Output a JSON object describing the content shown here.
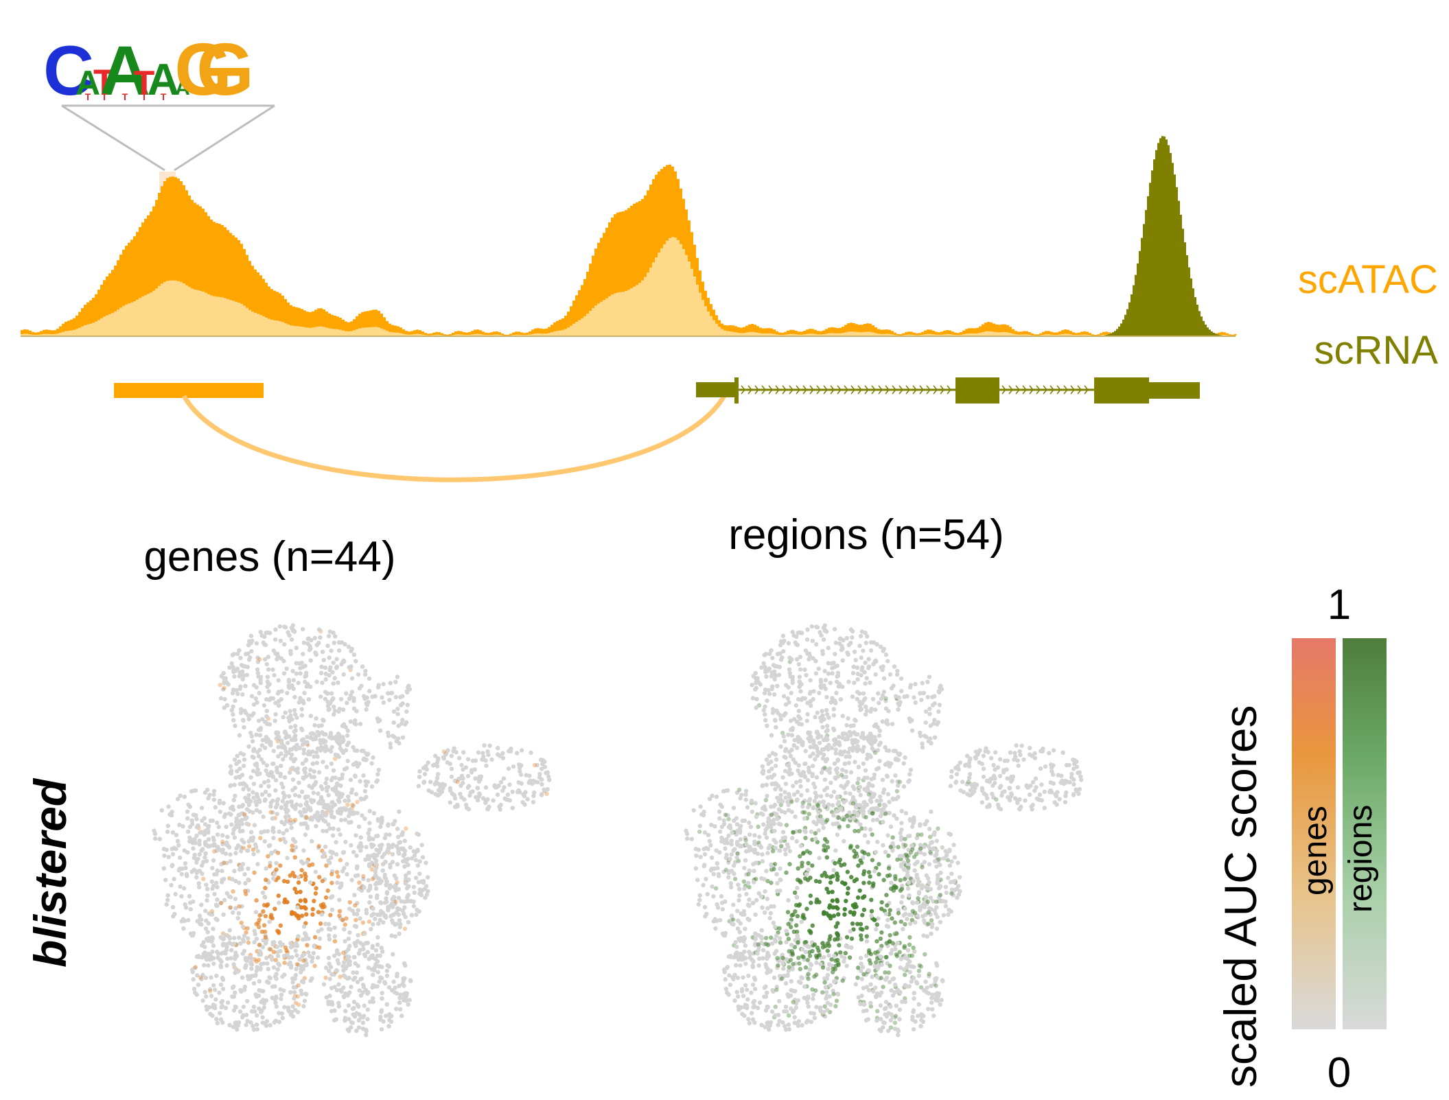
{
  "motif": {
    "letters": [
      "C",
      "A",
      "T",
      "A",
      "T",
      "A",
      "A",
      "G",
      "G"
    ],
    "colors": {
      "A": "#17891c",
      "C": "#1d2fd6",
      "G": "#f2a414",
      "T": "#e8292a"
    }
  },
  "tracks": {
    "atac_label": "scATAC",
    "rna_label": "scRNA",
    "atac_color": "#ffa500",
    "atac_light_color": "#ffd98a",
    "rna_color": "#7f7f00",
    "link_color": "#ffc870"
  },
  "umaps": {
    "genes_title": "genes (n=44)",
    "regions_title": "regions (n=54)",
    "row_label": "blistered",
    "gray_color": "#d4d4d4",
    "genes_color": "#e07b1a",
    "regions_color": "#3f7e2c"
  },
  "colorbar": {
    "title": "scaled AUC scores",
    "max_label": "1",
    "min_label": "0",
    "genes_label": "genes",
    "regions_label": "regions",
    "genes_gradient": [
      "#d9d9d9",
      "#e8c38a",
      "#e8973d",
      "#e6786a"
    ],
    "regions_gradient": [
      "#d9d9d9",
      "#a8d0a8",
      "#6aa865",
      "#4f7d3c"
    ]
  }
}
